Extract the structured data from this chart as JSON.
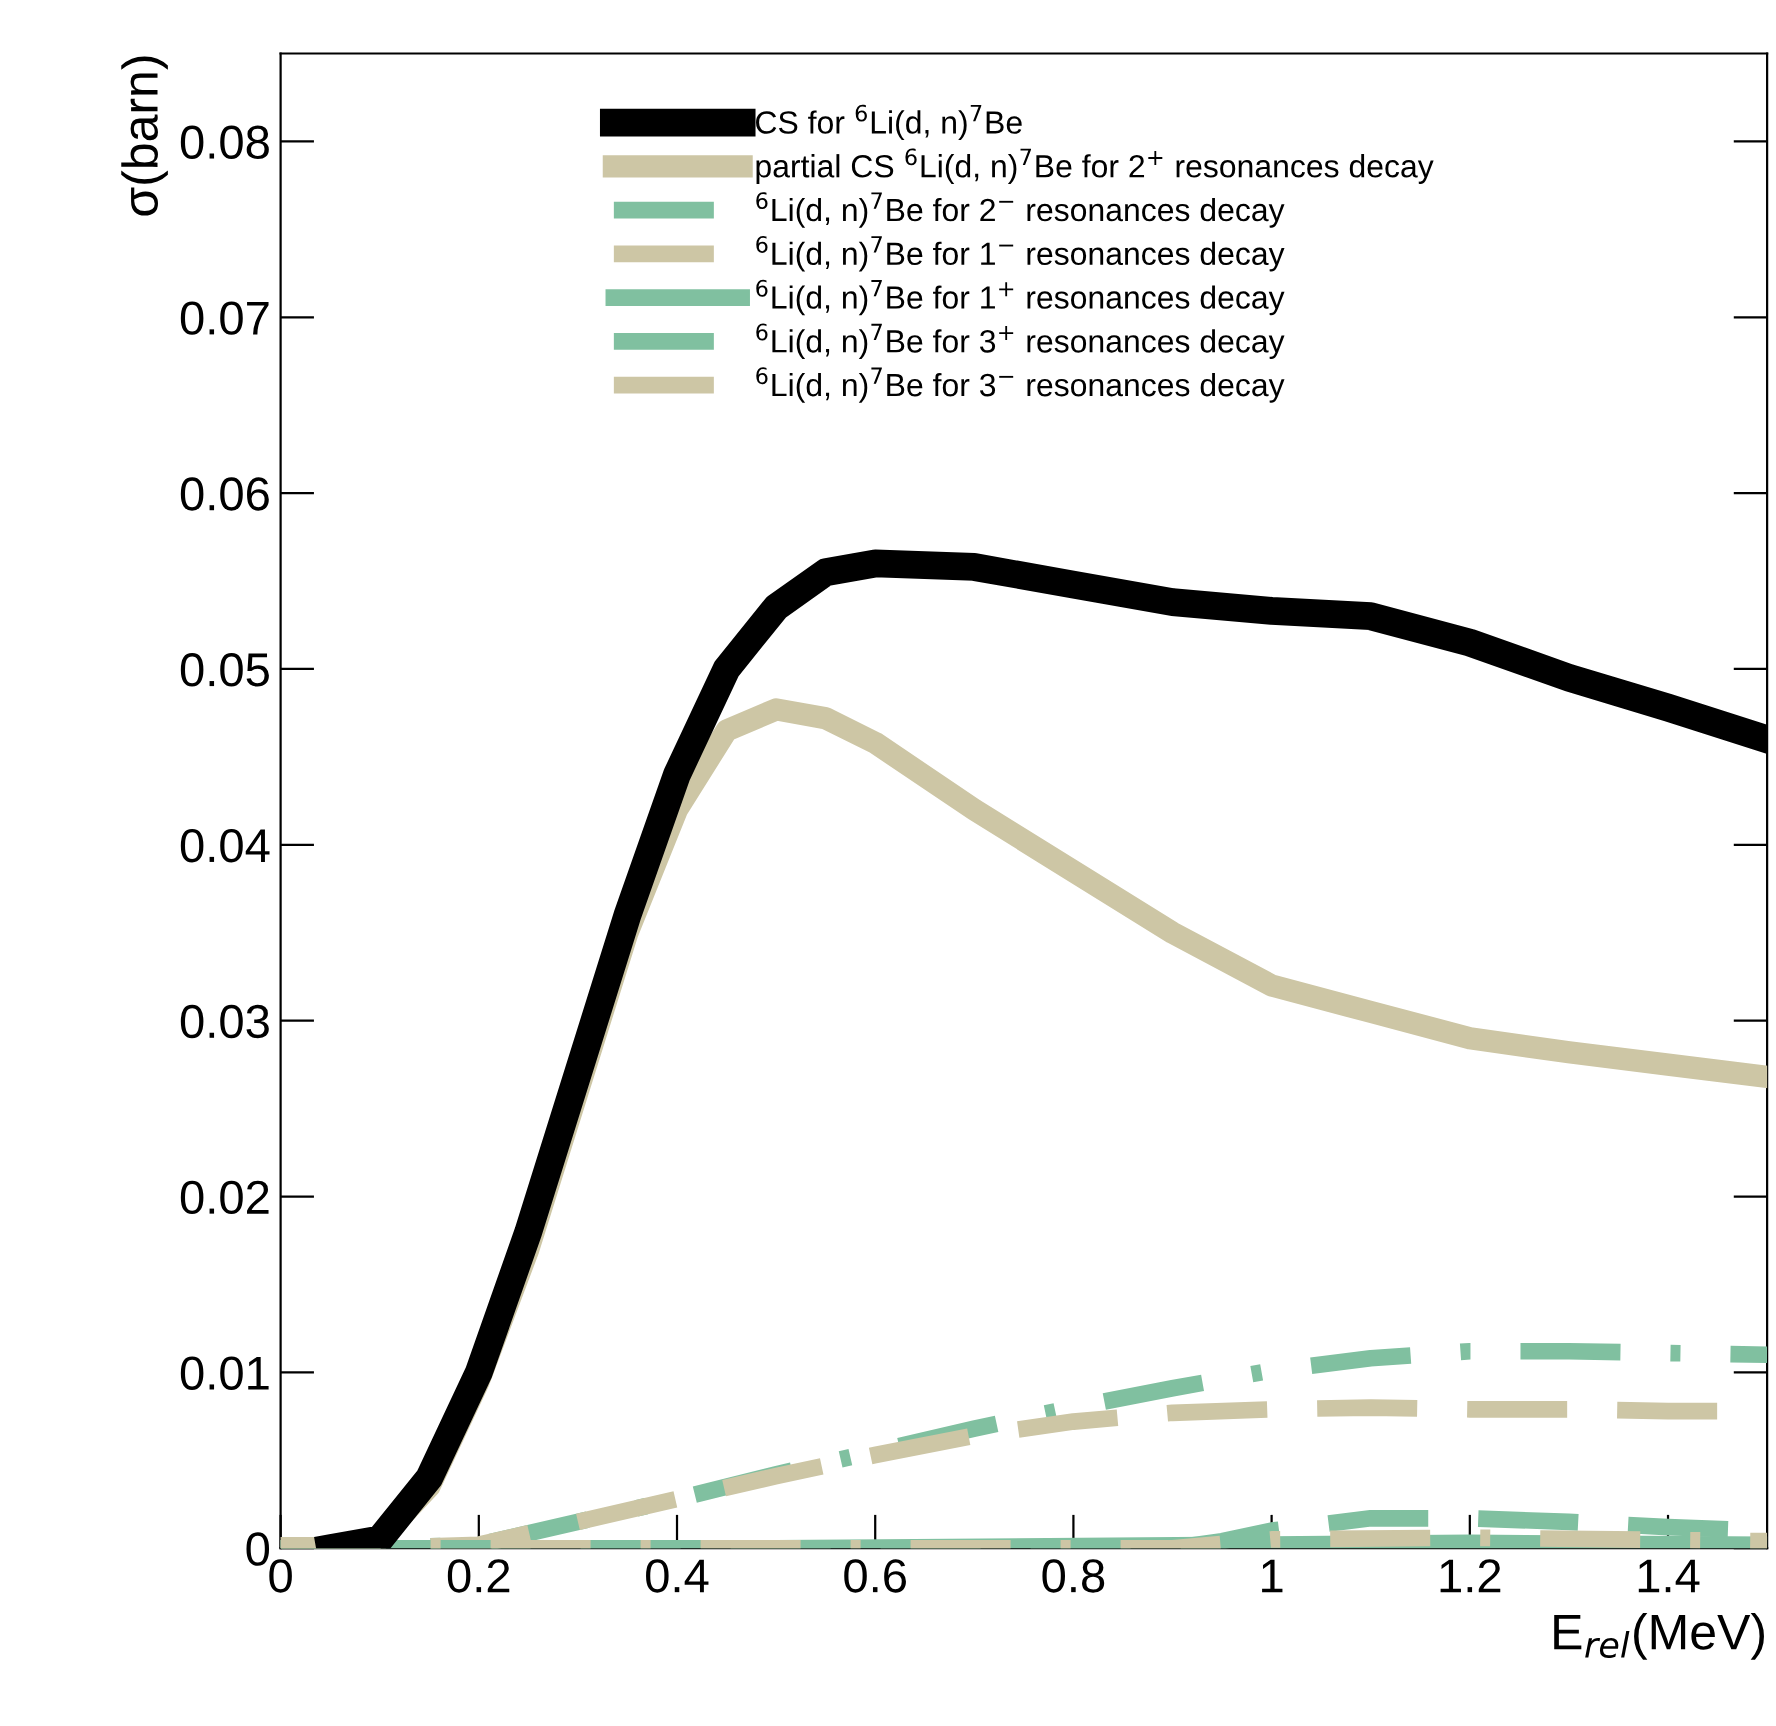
{
  "chart_data": {
    "type": "line",
    "xlabel": "E$_{rel}$(MeV)",
    "ylabel": "σ(barn)",
    "xlim": [
      0,
      1.5
    ],
    "xticks": [
      0,
      0.2,
      0.4,
      0.6,
      0.8,
      1,
      1.2,
      1.4
    ],
    "ylim": [
      0,
      0.085
    ],
    "yticks": [
      0,
      0.01,
      0.02,
      0.03,
      0.04,
      0.05,
      0.06,
      0.07,
      0.08
    ],
    "grid": false,
    "legend": "top",
    "marker": "none",
    "series": [
      {
        "name": "CS for $^{6}$Li(d, n)$^{7}$Be",
        "color": "#000000",
        "line_style": "solid",
        "x": [
          0.05,
          0.1,
          0.15,
          0.2,
          0.25,
          0.3,
          0.35,
          0.4,
          0.45,
          0.5,
          0.55,
          0.6,
          0.7,
          0.8,
          0.9,
          1.0,
          1.1,
          1.2,
          1.3,
          1.4,
          1.5
        ],
        "values": [
          0,
          0.0005,
          0.004,
          0.01,
          0.018,
          0.027,
          0.036,
          0.044,
          0.05,
          0.0535,
          0.0555,
          0.056,
          0.0558,
          0.0548,
          0.0538,
          0.0533,
          0.053,
          0.0515,
          0.0495,
          0.0478,
          0.046
        ]
      },
      {
        "name": "partial CS $^{6}$Li(d, n)$^{7}$Be for 2$^{+}$ resonances decay",
        "color": "#cdc6a5",
        "line_style": "solid",
        "x": [
          0,
          0.05,
          0.1,
          0.15,
          0.2,
          0.25,
          0.3,
          0.35,
          0.4,
          0.45,
          0.5,
          0.55,
          0.6,
          0.7,
          0.8,
          0.9,
          1.0,
          1.1,
          1.2,
          1.3,
          1.4,
          1.5
        ],
        "values": [
          0,
          0,
          0.0005,
          0.0035,
          0.0095,
          0.017,
          0.026,
          0.035,
          0.042,
          0.0465,
          0.0477,
          0.0472,
          0.0458,
          0.042,
          0.0385,
          0.035,
          0.032,
          0.0305,
          0.029,
          0.0282,
          0.0275,
          0.0268
        ]
      },
      {
        "name": "$^{6}$Li(d, n)$^{7}$Be for 2$^{−}$ resonances decay",
        "color": "#80c0a0",
        "line_style": "dashdot",
        "x": [
          0,
          0.1,
          0.2,
          0.3,
          0.4,
          0.5,
          0.6,
          0.7,
          0.8,
          0.9,
          1.0,
          1.1,
          1.2,
          1.3,
          1.4,
          1.5
        ],
        "values": [
          0,
          0,
          0.0002,
          0.0015,
          0.0028,
          0.0042,
          0.0055,
          0.0068,
          0.008,
          0.0091,
          0.0101,
          0.0108,
          0.0112,
          0.0112,
          0.0111,
          0.011
        ]
      },
      {
        "name": "$^{6}$Li(d, n)$^{7}$Be for 1$^{−}$ resonances decay",
        "color": "#cdc6a5",
        "line_style": "dashed",
        "x": [
          0,
          0.1,
          0.2,
          0.3,
          0.4,
          0.5,
          0.6,
          0.7,
          0.8,
          0.9,
          1.0,
          1.1,
          1.2,
          1.3,
          1.4,
          1.5
        ],
        "values": [
          0,
          0,
          0.0002,
          0.0015,
          0.0028,
          0.0041,
          0.0053,
          0.0064,
          0.0072,
          0.0077,
          0.0079,
          0.008,
          0.0079,
          0.0079,
          0.0078,
          0.0078
        ]
      },
      {
        "name": "$^{6}$Li(d, n)$^{7}$Be for 1$^{+}$ resonances decay",
        "color": "#80c0a0",
        "line_style": "solid",
        "x": [
          0,
          0.5,
          1.0,
          1.2,
          1.5
        ],
        "values": [
          0,
          0,
          0.0002,
          0.0003,
          0.0002
        ]
      },
      {
        "name": "$^{6}$Li(d, n)$^{7}$Be for 3$^{+}$ resonances decay",
        "color": "#80c0a0",
        "line_style": "dashed",
        "x": [
          0,
          0.9,
          0.95,
          1.0,
          1.1,
          1.2,
          1.3,
          1.4,
          1.5
        ],
        "values": [
          0,
          0,
          0.0004,
          0.001,
          0.0017,
          0.0017,
          0.0015,
          0.0012,
          0.001
        ]
      },
      {
        "name": "$^{6}$Li(d, n)$^{7}$Be for 3$^{−}$ resonances decay",
        "color": "#cdc6a5",
        "line_style": "dashdot",
        "x": [
          0,
          0.9,
          1.0,
          1.2,
          1.5
        ],
        "values": [
          0,
          0,
          0.0005,
          0.0006,
          0.0004
        ]
      }
    ]
  }
}
